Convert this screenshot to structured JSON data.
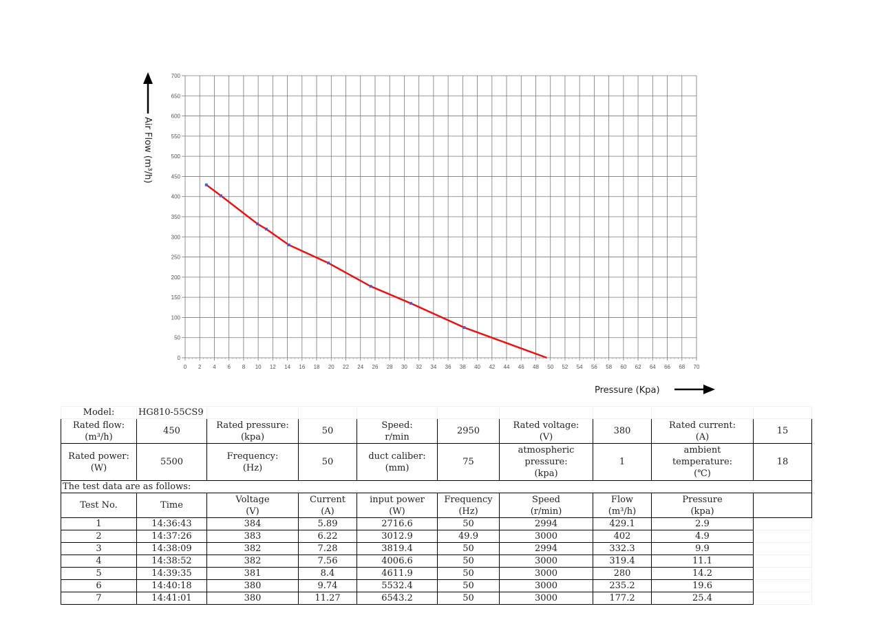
{
  "chart_data": {
    "type": "line",
    "ylabel": "Air Flow  (m³/h)",
    "xlabel": "Pressure  (Kpa)",
    "xlim": [
      0,
      70
    ],
    "ylim": [
      0,
      700
    ],
    "x_ticks": [
      0,
      2,
      4,
      6,
      8,
      10,
      12,
      14,
      16,
      18,
      20,
      22,
      24,
      26,
      28,
      30,
      32,
      34,
      36,
      38,
      40,
      42,
      44,
      46,
      48,
      50,
      52,
      54,
      56,
      58,
      60,
      62,
      64,
      66,
      68,
      70
    ],
    "y_ticks": [
      0,
      50,
      100,
      150,
      200,
      250,
      300,
      350,
      400,
      450,
      500,
      550,
      600,
      650,
      700
    ],
    "grid": true,
    "line_color": "#ee1111",
    "marker_color": "#5555cc",
    "series": [
      {
        "x": [
          2.9,
          4.9,
          9.9,
          11.1,
          14.2,
          19.6,
          25.4,
          30.9,
          38.2,
          49.5
        ],
        "y": [
          429.1,
          402,
          332.3,
          319.4,
          280,
          235.2,
          177.2,
          135,
          75,
          0
        ]
      }
    ]
  },
  "specs": {
    "model_label": "Model:",
    "model_value": "HG810-55CS9",
    "rated_flow_label": [
      "Rated flow:",
      "(m³/h)"
    ],
    "rated_flow_value": "450",
    "rated_pressure_label": [
      "Rated pressure:",
      "(kpa)"
    ],
    "rated_pressure_value": "50",
    "speed_label": [
      "Speed:",
      "r/min"
    ],
    "speed_value": "2950",
    "rated_voltage_label": [
      "Rated voltage:",
      "(V)"
    ],
    "rated_voltage_value": "380",
    "rated_current_label": [
      "Rated current:",
      "(A)"
    ],
    "rated_current_value": "15",
    "rated_power_label": [
      "Rated power:",
      "(W)"
    ],
    "rated_power_value": "5500",
    "frequency_label": [
      "Frequency:",
      "(Hz)"
    ],
    "frequency_value": "50",
    "duct_label": [
      "duct caliber:",
      "(mm)"
    ],
    "duct_value": "75",
    "atm_label": [
      "atmospheric",
      "pressure:",
      "(kpa)"
    ],
    "atm_value": "1",
    "ambient_label": [
      "ambient",
      "temperature:",
      "(℃)"
    ],
    "ambient_value": "18",
    "test_intro": "The test data are as follows:",
    "columns": [
      [
        "Test No.",
        ""
      ],
      [
        "Time",
        ""
      ],
      [
        "Voltage",
        "(V)"
      ],
      [
        "Current",
        "(A)"
      ],
      [
        "input power",
        "(W)"
      ],
      [
        "Frequency",
        "(Hz)"
      ],
      [
        "Speed",
        "(r/min)"
      ],
      [
        "Flow",
        "(m³/h)"
      ],
      [
        "Pressure",
        "(kpa)"
      ]
    ],
    "rows": [
      [
        "1",
        "14:36:43",
        "384",
        "5.89",
        "2716.6",
        "50",
        "2994",
        "429.1",
        "2.9"
      ],
      [
        "2",
        "14:37:26",
        "383",
        "6.22",
        "3012.9",
        "49.9",
        "3000",
        "402",
        "4.9"
      ],
      [
        "3",
        "14:38:09",
        "382",
        "7.28",
        "3819.4",
        "50",
        "2994",
        "332.3",
        "9.9"
      ],
      [
        "4",
        "14:38:52",
        "382",
        "7.56",
        "4006.6",
        "50",
        "3000",
        "319.4",
        "11.1"
      ],
      [
        "5",
        "14:39:35",
        "381",
        "8.4",
        "4611.9",
        "50",
        "3000",
        "280",
        "14.2"
      ],
      [
        "6",
        "14:40:18",
        "380",
        "9.74",
        "5532.4",
        "50",
        "3000",
        "235.2",
        "19.6"
      ],
      [
        "7",
        "14:41:01",
        "380",
        "11.27",
        "6543.2",
        "50",
        "3000",
        "177.2",
        "25.4"
      ]
    ]
  }
}
